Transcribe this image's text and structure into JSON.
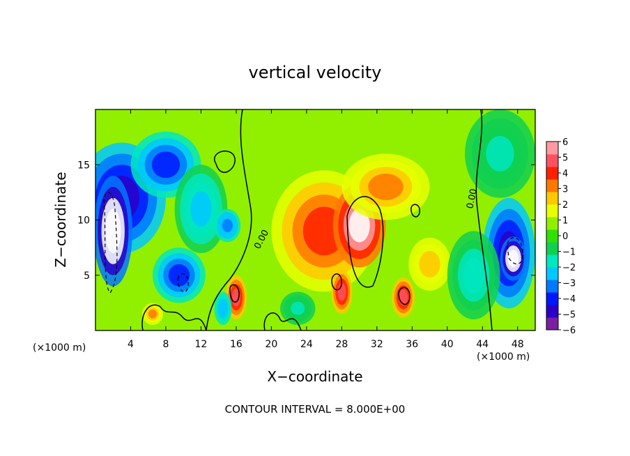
{
  "chart_data": {
    "type": "heatmap",
    "title": "vertical velocity",
    "xlabel": "X−coordinate",
    "ylabel": "Z−coordinate",
    "x_unit_label": "(×1000 m)",
    "z_unit_label": "(×1000 m)",
    "xlim": [
      0,
      50
    ],
    "ylim": [
      0,
      20
    ],
    "x_ticks": [
      "4",
      "8",
      "12",
      "16",
      "20",
      "24",
      "28",
      "32",
      "36",
      "40",
      "44",
      "48"
    ],
    "x_tick_values": [
      4,
      8,
      12,
      16,
      20,
      24,
      28,
      32,
      36,
      40,
      44,
      48
    ],
    "y_ticks": [
      "5",
      "10",
      "15"
    ],
    "y_tick_values": [
      5,
      10,
      15
    ],
    "colorbar": {
      "ticks": [
        "6",
        "5",
        "4",
        "3",
        "2",
        "1",
        "0",
        "−1",
        "−2",
        "−3",
        "−4",
        "−5",
        "−6"
      ],
      "min": -6,
      "max": 6,
      "colors": [
        "#7a1fa2",
        "#2a00c8",
        "#0018ff",
        "#0078ff",
        "#00c8ff",
        "#00e8c0",
        "#10d050",
        "#30e000",
        "#90f000",
        "#e8ff00",
        "#ffc800",
        "#ff7800",
        "#ff2000",
        "#ff5060",
        "#ff9aa0"
      ]
    },
    "contour_labels": [
      "0.00",
      "0.00"
    ],
    "contour_interval_text": "CONTOUR INTERVAL = 8.000E+00",
    "regions": [
      {
        "x": 26,
        "y": 9,
        "rx": 6,
        "ry": 5.5,
        "value": 4.0
      },
      {
        "x": 30,
        "y": 9.5,
        "rx": 3,
        "ry": 3.8,
        "value": 7.0
      },
      {
        "x": 33,
        "y": 13,
        "rx": 5,
        "ry": 3,
        "value": 3.0
      },
      {
        "x": 38,
        "y": 6,
        "rx": 3,
        "ry": 3,
        "value": 2.5
      },
      {
        "x": 16,
        "y": 3,
        "rx": 1.2,
        "ry": 2,
        "value": 5.0
      },
      {
        "x": 35,
        "y": 3,
        "rx": 1.3,
        "ry": 1.8,
        "value": 5.0
      },
      {
        "x": 28,
        "y": 3.5,
        "rx": 1.2,
        "ry": 2,
        "value": 5.0
      },
      {
        "x": 6.5,
        "y": 1.5,
        "rx": 1.2,
        "ry": 1,
        "value": 3.0
      },
      {
        "x": 3,
        "y": 12,
        "rx": 5,
        "ry": 5,
        "value": -5.0
      },
      {
        "x": 2,
        "y": 9,
        "rx": 2.2,
        "ry": 5,
        "value": -8.0
      },
      {
        "x": 8,
        "y": 15,
        "rx": 4,
        "ry": 3,
        "value": -4.0
      },
      {
        "x": 12,
        "y": 11,
        "rx": 3,
        "ry": 4,
        "value": -2.5
      },
      {
        "x": 15,
        "y": 9.5,
        "rx": 1.5,
        "ry": 1.5,
        "value": -3.5
      },
      {
        "x": 9.5,
        "y": 5,
        "rx": 3,
        "ry": 2.5,
        "value": -4.5
      },
      {
        "x": 47,
        "y": 7,
        "rx": 3,
        "ry": 5,
        "value": -5.5
      },
      {
        "x": 47.5,
        "y": 6.5,
        "rx": 1.5,
        "ry": 2,
        "value": -8.0
      },
      {
        "x": 43,
        "y": 5,
        "rx": 3,
        "ry": 4,
        "value": -2.0
      },
      {
        "x": 46,
        "y": 16,
        "rx": 4,
        "ry": 4,
        "value": -1.5
      },
      {
        "x": 14.5,
        "y": 2,
        "rx": 1,
        "ry": 1.5,
        "value": -3.0
      },
      {
        "x": 23,
        "y": 2,
        "rx": 2,
        "ry": 1.5,
        "value": -1.5
      }
    ]
  }
}
